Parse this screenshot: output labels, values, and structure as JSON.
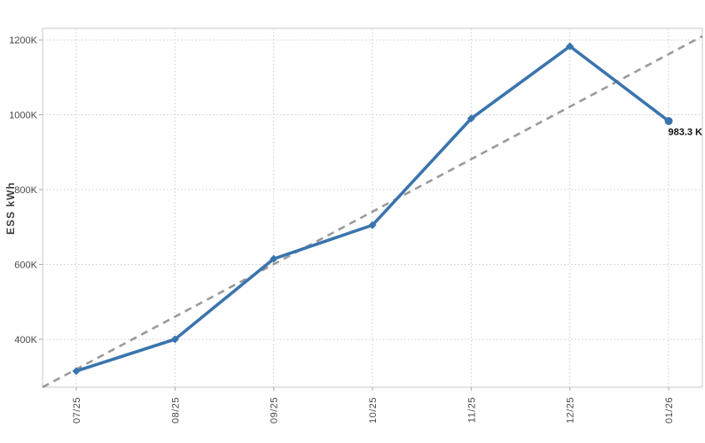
{
  "chart_data": {
    "type": "line",
    "title": "",
    "xlabel": "",
    "ylabel": "ESS kWh",
    "categories": [
      "07/25",
      "08/25",
      "09/25",
      "10/25",
      "11/25",
      "12/25",
      "01/26"
    ],
    "series": [
      {
        "name": "ESS kWh",
        "color": "#3a74ae",
        "values": [
          315,
          400,
          615,
          705,
          990,
          1183,
          983.3
        ]
      }
    ],
    "trendline": {
      "style": "dashed",
      "color": "#999999",
      "start_value": 272,
      "end_value": 1210
    },
    "annotation": {
      "text": "983.3 K",
      "category": "01/26",
      "value": 983.3
    },
    "y_axis": {
      "tick_labels": [
        "400K",
        "600K",
        "800K",
        "1000K",
        "1200K"
      ],
      "tick_values": [
        400,
        600,
        800,
        1000,
        1200
      ],
      "range": [
        272,
        1231
      ],
      "unit": "K"
    },
    "x_axis": {
      "tick_labels": [
        "07/25",
        "08/25",
        "09/25",
        "10/25",
        "11/25",
        "12/25",
        "01/26"
      ]
    },
    "grid": true,
    "legend": false,
    "colors": {
      "background": "#ffffff",
      "grid": "#cfcfcf",
      "border": "#c9c9c9",
      "tick": "#aaaaaa",
      "axis_text": "#4a4a4a"
    }
  }
}
